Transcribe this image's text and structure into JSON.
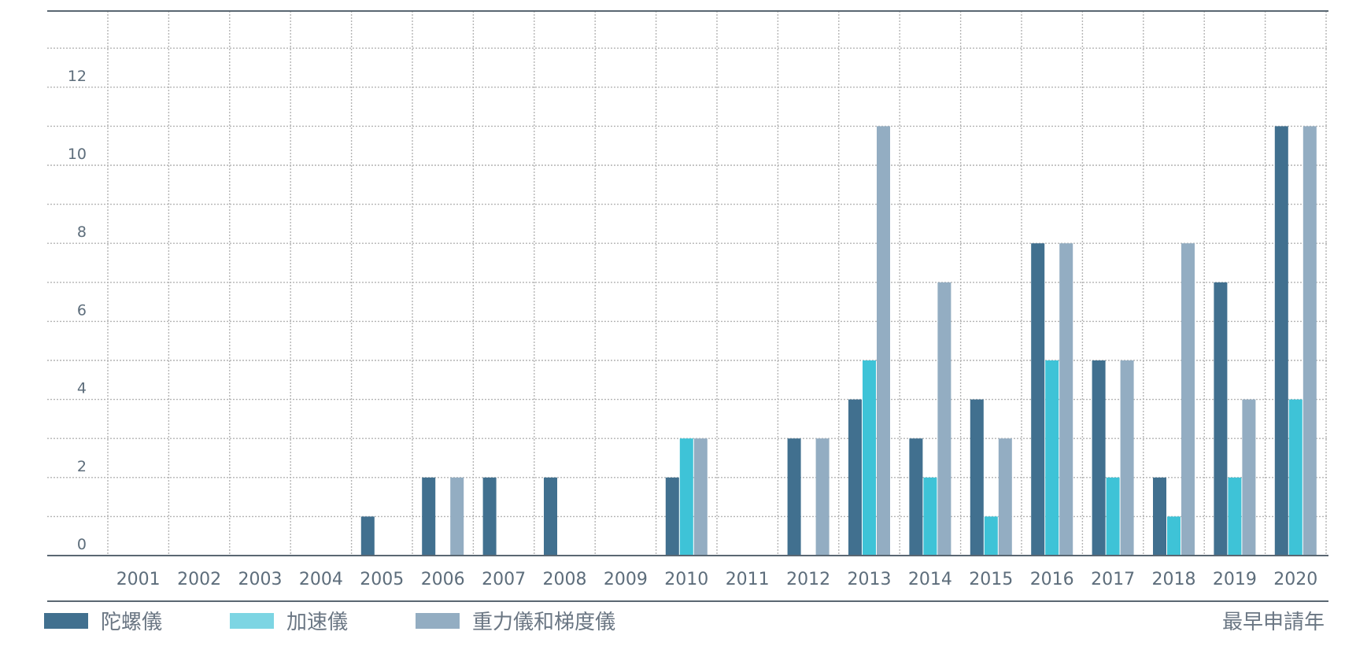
{
  "chart_data": {
    "type": "bar",
    "categories": [
      "2001",
      "2002",
      "2003",
      "2004",
      "2005",
      "2006",
      "2007",
      "2008",
      "2009",
      "2010",
      "2011",
      "2012",
      "2013",
      "2014",
      "2015",
      "2016",
      "2017",
      "2018",
      "2019",
      "2020"
    ],
    "series": [
      {
        "name": "陀螺儀",
        "color": "#41708f",
        "values": [
          0,
          0,
          0,
          0,
          1,
          2,
          2,
          2,
          0,
          2,
          0,
          3,
          4,
          3,
          4,
          8,
          5,
          2,
          7,
          11
        ]
      },
      {
        "name": "加速儀",
        "color": "#3ec3d7",
        "values": [
          0,
          0,
          0,
          0,
          0,
          0,
          0,
          0,
          0,
          3,
          0,
          0,
          5,
          2,
          1,
          5,
          2,
          1,
          2,
          4
        ]
      },
      {
        "name": "重力儀和梯度儀",
        "color": "#93adc2",
        "values": [
          0,
          0,
          0,
          0,
          0,
          2,
          0,
          0,
          0,
          3,
          0,
          3,
          11,
          7,
          3,
          8,
          5,
          8,
          4,
          11
        ]
      }
    ],
    "legend_swatch_colors": [
      "#41708f",
      "#7dd5e3",
      "#93adc2"
    ],
    "y_ticks": [
      "0",
      "2",
      "4",
      "6",
      "8",
      "10",
      "12"
    ],
    "ylim": [
      0,
      14
    ],
    "xlabel": "最早申請年",
    "ylabel": "",
    "title": "",
    "grid": true,
    "legend_position": "bottom-left"
  }
}
